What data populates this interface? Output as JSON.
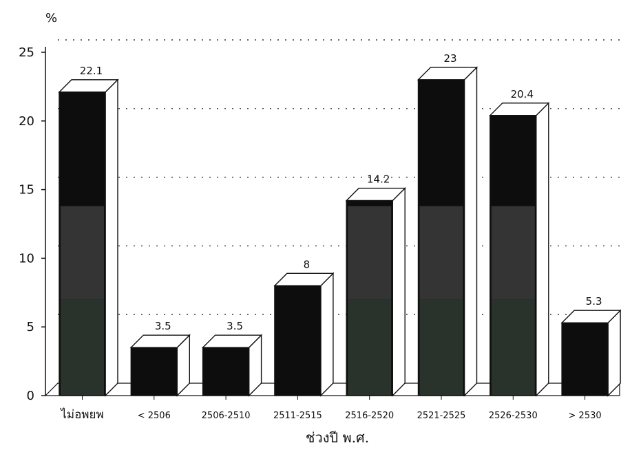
{
  "chart_data": {
    "type": "bar",
    "title": "",
    "ylabel": "%",
    "xlabel": "ช่วงปี พ.ศ.",
    "ylim": [
      0,
      25
    ],
    "yticks": [
      0,
      5,
      10,
      15,
      20,
      25
    ],
    "grid": "dotted horizontal",
    "legend": "none",
    "categories": [
      "ไม่อพยพ",
      "< 2506",
      "2506-2510",
      "2511-2515",
      "2516-2520",
      "2521-2525",
      "2526-2530",
      "> 2530"
    ],
    "values": [
      22.1,
      3.5,
      3.5,
      8,
      14.2,
      23,
      20.4,
      5.3
    ],
    "value_labels": [
      "22.1",
      "3.5",
      "3.5",
      "8",
      "14.2",
      "23",
      "20.4",
      "5.3"
    ],
    "colors": {
      "bar_front_dark": "#0d0d0d",
      "bar_side": "#ffffff",
      "bar_outline": "#111111",
      "shade_low": "#2a332b",
      "shade_mid": "#343434",
      "grid": "#333333"
    }
  }
}
